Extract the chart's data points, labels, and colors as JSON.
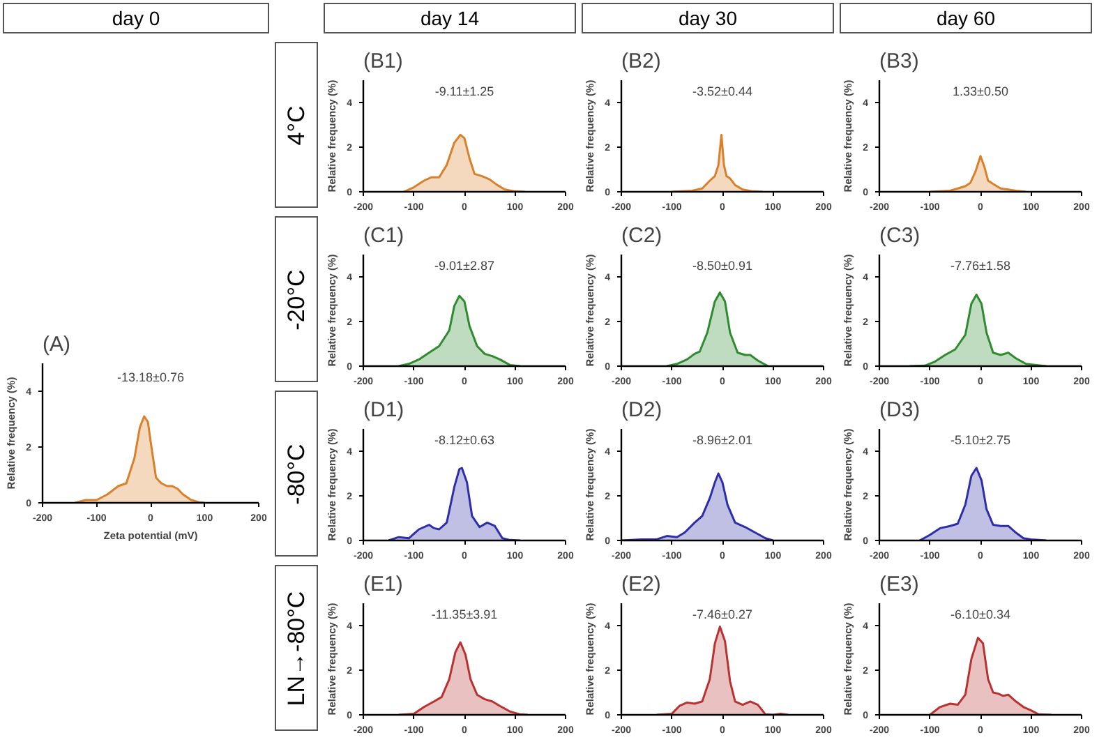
{
  "chart_data": [
    {
      "type": "other",
      "annotations": [
        "day 0",
        "day 14",
        "day 30",
        "day 60",
        "4°C",
        "-20°C",
        "-80°C",
        "LN→-80°C"
      ]
    },
    {
      "type": "area",
      "title": "(A)",
      "xlabel": "Zeta potential (mV)",
      "ylabel": "Relative frequency (%)",
      "annotations": [
        "-13.18±0.76"
      ],
      "xlim": [
        -200,
        200
      ],
      "xticks": [
        -200,
        -100,
        0,
        100,
        200
      ],
      "ylim": [
        0,
        5
      ],
      "yticks": [
        0,
        2,
        4
      ],
      "series": [
        {
          "color": "#d9802a",
          "x": [
            -140,
            -120,
            -100,
            -80,
            -60,
            -45,
            -30,
            -20,
            -12,
            -5,
            0,
            10,
            20,
            30,
            40,
            50,
            60,
            75,
            90,
            100
          ],
          "values": [
            0,
            0.1,
            0.1,
            0.3,
            0.6,
            0.7,
            1.6,
            2.7,
            3.1,
            2.9,
            2.2,
            0.9,
            0.7,
            0.6,
            0.6,
            0.5,
            0.3,
            0.1,
            0.02,
            0
          ]
        }
      ]
    },
    {
      "type": "area",
      "title": "(B1)",
      "ylabel": "Relative frequency (%)",
      "annotations": [
        "-9.11±1.25"
      ],
      "xlim": [
        -200,
        200
      ],
      "xticks": [
        -200,
        -100,
        0,
        100,
        200
      ],
      "ylim": [
        0,
        5
      ],
      "yticks": [
        0,
        2,
        4
      ],
      "series": [
        {
          "color": "#d9802a",
          "x": [
            -120,
            -100,
            -80,
            -65,
            -50,
            -35,
            -20,
            -8,
            0,
            10,
            20,
            35,
            50,
            65,
            80,
            100,
            120
          ],
          "values": [
            0,
            0.2,
            0.5,
            0.65,
            0.65,
            1.2,
            2.2,
            2.55,
            2.4,
            1.5,
            0.8,
            0.7,
            0.55,
            0.3,
            0.1,
            0.02,
            0
          ]
        }
      ]
    },
    {
      "type": "area",
      "title": "(B2)",
      "ylabel": "Relative frequency (%)",
      "annotations": [
        "-3.52±0.44"
      ],
      "xlim": [
        -200,
        200
      ],
      "xticks": [
        -200,
        -100,
        0,
        100,
        200
      ],
      "ylim": [
        0,
        5
      ],
      "yticks": [
        0,
        2,
        4
      ],
      "series": [
        {
          "color": "#d9802a",
          "x": [
            -100,
            -60,
            -40,
            -25,
            -15,
            -8,
            -2,
            3,
            8,
            15,
            25,
            40,
            60,
            80
          ],
          "values": [
            0,
            0.05,
            0.15,
            0.5,
            0.7,
            1.2,
            2.55,
            1.2,
            0.7,
            0.6,
            0.3,
            0.1,
            0.02,
            0
          ]
        }
      ]
    },
    {
      "type": "area",
      "title": "(B3)",
      "ylabel": "Relative frequency (%)",
      "annotations": [
        "1.33±0.50"
      ],
      "xlim": [
        -200,
        200
      ],
      "xticks": [
        -200,
        -100,
        0,
        100,
        200
      ],
      "ylim": [
        0,
        5
      ],
      "yticks": [
        0,
        2,
        4
      ],
      "series": [
        {
          "color": "#d9802a",
          "x": [
            -100,
            -60,
            -45,
            -30,
            -20,
            -10,
            0,
            8,
            15,
            25,
            40,
            55,
            70,
            90
          ],
          "values": [
            0,
            0.05,
            0.15,
            0.25,
            0.4,
            0.9,
            1.6,
            1.1,
            0.5,
            0.35,
            0.15,
            0.1,
            0.05,
            0
          ]
        }
      ]
    },
    {
      "type": "area",
      "title": "(C1)",
      "ylabel": "Relative frequency (%)",
      "annotations": [
        "-9.01±2.87"
      ],
      "xlim": [
        -200,
        200
      ],
      "xticks": [
        -200,
        -100,
        0,
        100,
        200
      ],
      "ylim": [
        0,
        5
      ],
      "yticks": [
        0,
        2,
        4
      ],
      "series": [
        {
          "color": "#2e8b2e",
          "x": [
            -130,
            -110,
            -90,
            -70,
            -50,
            -30,
            -20,
            -10,
            0,
            10,
            25,
            40,
            55,
            70,
            90,
            110
          ],
          "values": [
            0,
            0.1,
            0.3,
            0.6,
            0.9,
            1.6,
            2.7,
            3.15,
            2.9,
            1.8,
            0.9,
            0.55,
            0.45,
            0.3,
            0.05,
            0
          ]
        }
      ]
    },
    {
      "type": "area",
      "title": "(C2)",
      "ylabel": "Relative frequency (%)",
      "annotations": [
        "-8.50±0.91"
      ],
      "xlim": [
        -200,
        200
      ],
      "xticks": [
        -200,
        -100,
        0,
        100,
        200
      ],
      "ylim": [
        0,
        5
      ],
      "yticks": [
        0,
        2,
        4
      ],
      "series": [
        {
          "color": "#2e8b2e",
          "x": [
            -110,
            -90,
            -70,
            -55,
            -45,
            -30,
            -15,
            -5,
            5,
            15,
            30,
            45,
            55,
            70,
            90
          ],
          "values": [
            0,
            0.1,
            0.3,
            0.55,
            0.65,
            1.5,
            2.9,
            3.3,
            2.9,
            1.5,
            0.6,
            0.5,
            0.5,
            0.25,
            0
          ]
        }
      ]
    },
    {
      "type": "area",
      "title": "(C3)",
      "ylabel": "Relative frequency (%)",
      "annotations": [
        "-7.76±1.58"
      ],
      "xlim": [
        -200,
        200
      ],
      "xticks": [
        -200,
        -100,
        0,
        100,
        200
      ],
      "ylim": [
        0,
        5
      ],
      "yticks": [
        0,
        2,
        4
      ],
      "series": [
        {
          "color": "#2e8b2e",
          "x": [
            -140,
            -110,
            -90,
            -70,
            -50,
            -30,
            -18,
            -8,
            2,
            12,
            25,
            40,
            55,
            70,
            90,
            110,
            130
          ],
          "values": [
            0,
            0.02,
            0.2,
            0.5,
            0.75,
            1.4,
            2.8,
            3.2,
            2.8,
            1.5,
            0.6,
            0.5,
            0.6,
            0.35,
            0.1,
            0.05,
            0
          ]
        }
      ]
    },
    {
      "type": "area",
      "title": "(D1)",
      "ylabel": "Relative frequency (%)",
      "annotations": [
        "-8.12±0.63"
      ],
      "xlim": [
        -200,
        200
      ],
      "xticks": [
        -200,
        -100,
        0,
        100,
        200
      ],
      "ylim": [
        0,
        5
      ],
      "yticks": [
        0,
        2,
        4
      ],
      "series": [
        {
          "color": "#2e2ea8",
          "x": [
            -150,
            -130,
            -110,
            -90,
            -70,
            -60,
            -50,
            -35,
            -20,
            -10,
            -5,
            5,
            15,
            30,
            45,
            60,
            75,
            90,
            110
          ],
          "values": [
            0,
            0.15,
            0.1,
            0.5,
            0.7,
            0.55,
            0.5,
            0.8,
            2.4,
            3.2,
            3.25,
            2.6,
            1.1,
            0.6,
            0.8,
            0.65,
            0.1,
            0.02,
            0
          ]
        }
      ]
    },
    {
      "type": "area",
      "title": "(D2)",
      "ylabel": "Relative frequency (%)",
      "annotations": [
        "-8.96±2.01"
      ],
      "xlim": [
        -200,
        200
      ],
      "xticks": [
        -200,
        -100,
        0,
        100,
        200
      ],
      "ylim": [
        0,
        5
      ],
      "yticks": [
        0,
        2,
        4
      ],
      "series": [
        {
          "color": "#2e2ea8",
          "x": [
            -200,
            -160,
            -130,
            -110,
            -90,
            -75,
            -55,
            -40,
            -25,
            -15,
            -8,
            0,
            10,
            25,
            45,
            65,
            85,
            100
          ],
          "values": [
            0,
            0.05,
            0.05,
            0.2,
            0.15,
            0.35,
            0.8,
            1.1,
            1.9,
            2.6,
            3.0,
            2.6,
            1.6,
            0.8,
            0.6,
            0.35,
            0.1,
            0
          ]
        }
      ]
    },
    {
      "type": "area",
      "title": "(D3)",
      "ylabel": "Relative frequency (%)",
      "annotations": [
        "-5.10±2.75"
      ],
      "xlim": [
        -200,
        200
      ],
      "xticks": [
        -200,
        -100,
        0,
        100,
        200
      ],
      "ylim": [
        0,
        5
      ],
      "yticks": [
        0,
        2,
        4
      ],
      "series": [
        {
          "color": "#2e2ea8",
          "x": [
            -120,
            -100,
            -80,
            -60,
            -45,
            -30,
            -18,
            -8,
            2,
            12,
            25,
            40,
            55,
            70,
            85,
            100,
            130
          ],
          "values": [
            0,
            0.25,
            0.55,
            0.65,
            0.75,
            1.6,
            2.9,
            3.25,
            2.7,
            1.4,
            0.7,
            0.65,
            0.65,
            0.35,
            0.1,
            0.05,
            0
          ]
        }
      ]
    },
    {
      "type": "area",
      "title": "(E1)",
      "ylabel": "Relative frequency (%)",
      "annotations": [
        "-11.35±3.91"
      ],
      "xlim": [
        -200,
        200
      ],
      "xticks": [
        -200,
        -100,
        0,
        100,
        200
      ],
      "ylim": [
        0,
        5
      ],
      "yticks": [
        0,
        2,
        4
      ],
      "series": [
        {
          "color": "#b83232",
          "x": [
            -130,
            -100,
            -80,
            -60,
            -45,
            -30,
            -18,
            -8,
            2,
            12,
            25,
            40,
            55,
            70,
            90,
            110,
            125
          ],
          "values": [
            0,
            0.05,
            0.35,
            0.6,
            0.8,
            1.6,
            2.8,
            3.25,
            2.7,
            1.6,
            0.9,
            0.7,
            0.6,
            0.4,
            0.15,
            0.02,
            0
          ]
        }
      ]
    },
    {
      "type": "area",
      "title": "(E2)",
      "ylabel": "Relative frequency (%)",
      "annotations": [
        "-7.46±0.27"
      ],
      "xlim": [
        -200,
        200
      ],
      "xticks": [
        -200,
        -100,
        0,
        100,
        200
      ],
      "ylim": [
        0,
        5
      ],
      "yticks": [
        0,
        2,
        4
      ],
      "series": [
        {
          "color": "#b83232",
          "x": [
            -130,
            -100,
            -85,
            -70,
            -55,
            -40,
            -25,
            -15,
            -5,
            5,
            15,
            25,
            40,
            55,
            70,
            85,
            100,
            115,
            130
          ],
          "values": [
            0,
            0.05,
            0.4,
            0.55,
            0.5,
            0.6,
            1.6,
            3.2,
            3.95,
            3.3,
            1.5,
            0.6,
            0.45,
            0.6,
            0.45,
            0.02,
            0,
            0.05,
            0
          ]
        }
      ]
    },
    {
      "type": "area",
      "title": "(E3)",
      "ylabel": "Relative frequency (%)",
      "annotations": [
        "-6.10±0.34"
      ],
      "xlim": [
        -200,
        200
      ],
      "xticks": [
        -200,
        -100,
        0,
        100,
        200
      ],
      "ylim": [
        0,
        5
      ],
      "yticks": [
        0,
        2,
        4
      ],
      "series": [
        {
          "color": "#b83232",
          "x": [
            -100,
            -80,
            -60,
            -45,
            -30,
            -18,
            -5,
            5,
            15,
            25,
            35,
            45,
            55,
            70,
            85,
            100,
            115,
            140
          ],
          "values": [
            0,
            0.35,
            0.5,
            0.45,
            0.9,
            2.5,
            3.45,
            3.2,
            1.6,
            1.0,
            0.95,
            0.85,
            0.9,
            0.6,
            0.35,
            0.2,
            0.02,
            0
          ]
        }
      ]
    }
  ]
}
